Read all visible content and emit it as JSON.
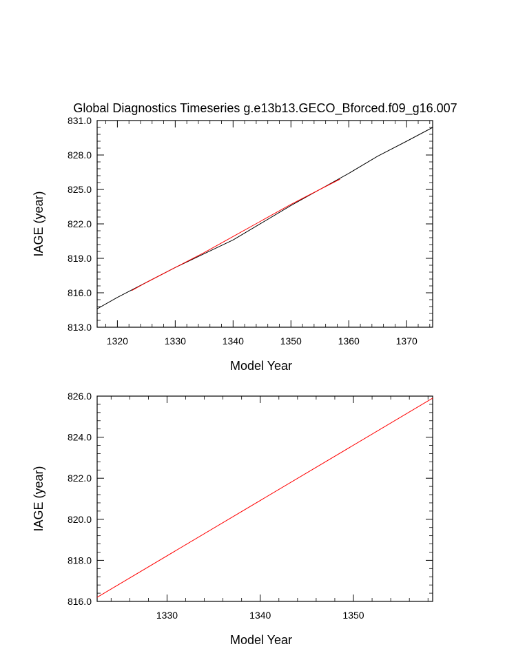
{
  "chart_data": [
    {
      "type": "line",
      "title": "Global Diagnostics Timeseries g.e13b13.GECO_Bforced.f09_g16.007",
      "xlabel": "Model Year",
      "ylabel": "IAGE (year)",
      "xlim": [
        1316.5,
        1374.5
      ],
      "ylim": [
        813.0,
        831.0
      ],
      "xticks": [
        1320,
        1330,
        1340,
        1350,
        1360,
        1370
      ],
      "xtick_labels": [
        "1320",
        "1330",
        "1340",
        "1350",
        "1360",
        "1370"
      ],
      "yticks": [
        813.0,
        816.0,
        819.0,
        822.0,
        825.0,
        828.0,
        831.0
      ],
      "ytick_labels": [
        "813.0",
        "816.0",
        "819.0",
        "822.0",
        "825.0",
        "828.0",
        "831.0"
      ],
      "grid": false,
      "series": [
        {
          "color": "#000000",
          "x": [
            1316.5,
            1320,
            1325,
            1330,
            1335,
            1340,
            1345,
            1350,
            1355,
            1360,
            1365,
            1370,
            1374.5
          ],
          "y": [
            814.6,
            815.6,
            816.9,
            818.2,
            819.4,
            820.6,
            822.1,
            823.6,
            825.0,
            826.4,
            827.9,
            829.2,
            830.4
          ]
        },
        {
          "color": "#ff0000",
          "x": [
            1322.5,
            1325,
            1330,
            1335,
            1340,
            1345,
            1350,
            1355,
            1358.5
          ],
          "y": [
            816.2,
            816.9,
            818.2,
            819.5,
            820.9,
            822.3,
            823.7,
            825.0,
            825.9
          ]
        }
      ]
    },
    {
      "type": "line",
      "title": "",
      "xlabel": "Model Year",
      "ylabel": "IAGE (year)",
      "xlim": [
        1322.5,
        1358.5
      ],
      "ylim": [
        816.0,
        826.0
      ],
      "xticks": [
        1330,
        1340,
        1350
      ],
      "xtick_labels": [
        "1330",
        "1340",
        "1350"
      ],
      "yticks": [
        816.0,
        818.0,
        820.0,
        822.0,
        824.0,
        826.0
      ],
      "ytick_labels": [
        "816.0",
        "818.0",
        "820.0",
        "822.0",
        "824.0",
        "826.0"
      ],
      "grid": false,
      "series": [
        {
          "color": "#ff0000",
          "x": [
            1322.5,
            1358.5
          ],
          "y": [
            816.2,
            825.9
          ]
        }
      ]
    }
  ]
}
